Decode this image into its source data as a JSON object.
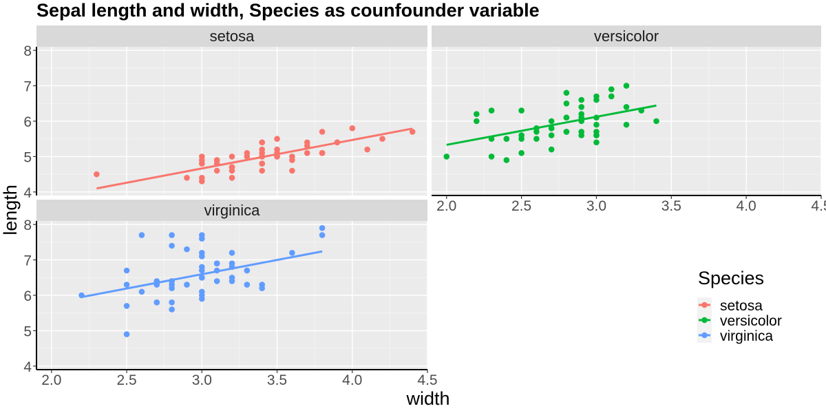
{
  "chart_data": {
    "type": "scatter",
    "title": "Sepal length and width, Species as counfounder variable",
    "xlabel": "width",
    "ylabel": "length",
    "xlim": [
      1.9,
      4.5
    ],
    "ylim": [
      3.9,
      8.1
    ],
    "x_ticks": [
      "2.0",
      "2.5",
      "3.0",
      "3.5",
      "4.0",
      "4.5"
    ],
    "y_ticks": [
      "4",
      "5",
      "6",
      "7",
      "8"
    ],
    "grid": true,
    "legend": {
      "title": "Species",
      "position": "right"
    },
    "facets": [
      {
        "name": "setosa",
        "color": "#F8766D",
        "fit": {
          "x": [
            2.3,
            4.4
          ],
          "y": [
            4.1,
            5.79
          ]
        },
        "x": [
          3.5,
          3.0,
          3.2,
          3.1,
          3.6,
          3.9,
          3.4,
          3.4,
          2.9,
          3.1,
          3.7,
          3.4,
          3.0,
          3.0,
          4.0,
          4.4,
          3.9,
          3.5,
          3.8,
          3.8,
          3.4,
          3.7,
          3.6,
          3.3,
          3.4,
          3.0,
          3.4,
          3.5,
          3.4,
          3.2,
          3.1,
          3.4,
          4.1,
          4.2,
          3.1,
          3.2,
          3.5,
          3.6,
          3.0,
          3.4,
          3.5,
          2.3,
          3.2,
          3.5,
          3.8,
          3.0,
          3.8,
          3.2,
          3.7,
          3.3
        ],
        "y": [
          5.1,
          4.9,
          4.7,
          4.6,
          5.0,
          5.4,
          4.6,
          5.0,
          4.4,
          4.9,
          5.4,
          4.8,
          4.8,
          4.3,
          5.8,
          5.7,
          5.4,
          5.1,
          5.7,
          5.1,
          5.4,
          5.1,
          4.6,
          5.1,
          4.8,
          5.0,
          5.0,
          5.2,
          5.2,
          4.7,
          4.8,
          5.4,
          5.2,
          5.5,
          4.9,
          5.0,
          5.5,
          4.9,
          4.4,
          5.1,
          5.0,
          4.5,
          4.4,
          5.0,
          5.1,
          4.8,
          5.1,
          4.6,
          5.3,
          5.0
        ]
      },
      {
        "name": "versicolor",
        "color": "#00BA38",
        "fit": {
          "x": [
            2.0,
            3.4
          ],
          "y": [
            5.33,
            6.44
          ]
        },
        "x": [
          3.2,
          3.2,
          3.1,
          2.3,
          2.8,
          2.8,
          3.3,
          2.4,
          2.9,
          2.7,
          2.0,
          3.0,
          2.2,
          2.9,
          2.9,
          3.1,
          3.0,
          2.7,
          2.2,
          2.5,
          3.2,
          2.8,
          2.5,
          2.8,
          2.9,
          3.0,
          2.8,
          3.0,
          2.9,
          2.6,
          2.4,
          2.4,
          2.7,
          2.7,
          3.0,
          3.4,
          3.1,
          2.3,
          3.0,
          2.5,
          2.6,
          3.0,
          2.6,
          2.3,
          2.7,
          3.0,
          2.9,
          2.9,
          2.5,
          2.8
        ],
        "y": [
          7.0,
          6.4,
          6.9,
          5.5,
          6.5,
          5.7,
          6.3,
          4.9,
          6.6,
          5.2,
          5.0,
          5.9,
          6.0,
          6.1,
          5.6,
          6.7,
          5.6,
          5.8,
          6.2,
          5.6,
          5.9,
          6.1,
          6.3,
          6.1,
          6.4,
          6.6,
          6.8,
          6.7,
          6.0,
          5.7,
          5.5,
          5.5,
          5.8,
          6.0,
          5.4,
          6.0,
          6.7,
          6.3,
          5.6,
          5.5,
          5.5,
          6.1,
          5.8,
          5.0,
          5.6,
          5.7,
          5.7,
          6.2,
          5.1,
          5.7
        ]
      },
      {
        "name": "virginica",
        "color": "#619CFF",
        "fit": {
          "x": [
            2.2,
            3.8
          ],
          "y": [
            5.95,
            7.24
          ]
        },
        "x": [
          3.3,
          2.7,
          3.0,
          2.9,
          3.0,
          3.0,
          2.5,
          2.9,
          2.5,
          3.6,
          3.2,
          2.7,
          3.0,
          2.5,
          2.8,
          3.2,
          3.0,
          3.8,
          2.6,
          2.2,
          3.2,
          2.8,
          2.8,
          2.7,
          3.3,
          3.2,
          2.8,
          3.0,
          2.8,
          3.0,
          2.8,
          3.8,
          2.8,
          2.8,
          2.6,
          3.0,
          3.4,
          3.1,
          3.0,
          3.1,
          3.1,
          3.1,
          2.7,
          3.2,
          3.3,
          3.0,
          2.5,
          3.0,
          3.4,
          3.0
        ],
        "y": [
          6.3,
          5.8,
          7.1,
          6.3,
          6.5,
          7.6,
          4.9,
          7.3,
          6.7,
          7.2,
          6.5,
          6.4,
          6.8,
          5.7,
          5.8,
          6.4,
          6.5,
          7.7,
          7.7,
          6.0,
          6.9,
          5.6,
          7.7,
          6.3,
          6.7,
          7.2,
          6.2,
          6.1,
          6.4,
          7.2,
          7.4,
          7.9,
          6.4,
          6.3,
          6.1,
          7.7,
          6.3,
          6.4,
          6.0,
          6.9,
          6.7,
          6.9,
          5.8,
          6.8,
          6.7,
          6.7,
          6.3,
          6.5,
          6.2,
          5.9
        ]
      }
    ]
  }
}
